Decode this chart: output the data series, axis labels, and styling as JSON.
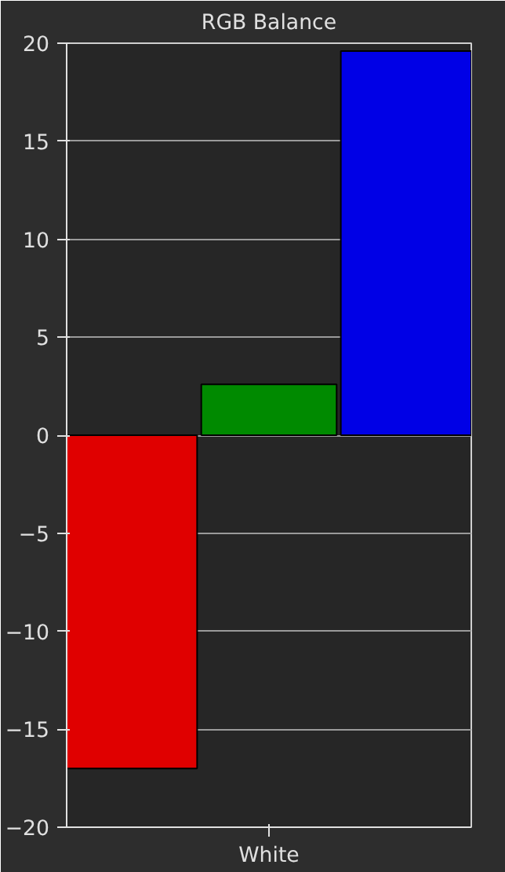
{
  "chart_data": {
    "type": "bar",
    "title": "RGB Balance",
    "categories": [
      null,
      "White",
      null
    ],
    "values": [
      -17,
      2.6,
      19.6
    ],
    "colors": [
      "#e00000",
      "#008a00",
      "#0000e6"
    ],
    "ylim": [
      -20,
      20
    ],
    "yticks": [
      -20,
      -15,
      -10,
      -5,
      0,
      5,
      10,
      15,
      20
    ],
    "grid": "y"
  }
}
